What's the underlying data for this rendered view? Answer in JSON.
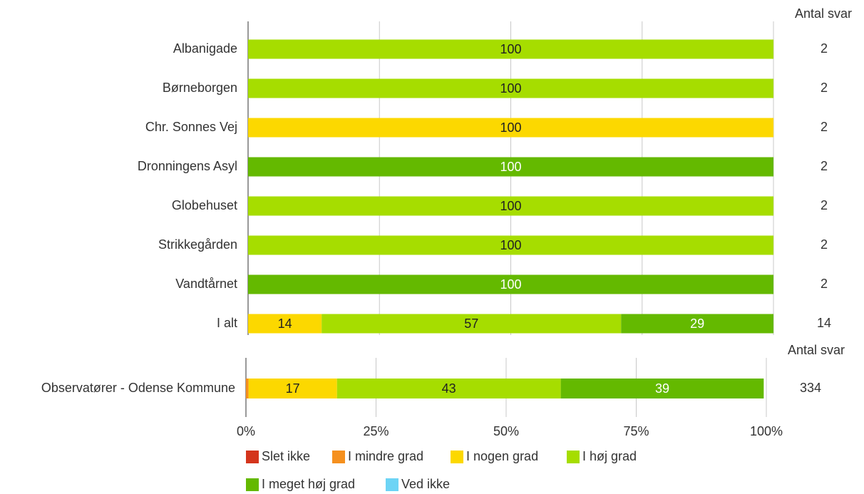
{
  "chart_data": [
    {
      "type": "stacked-bar",
      "categories": [
        "Albanigade",
        "Børneborgen",
        "Chr. Sonnes Vej",
        "Dronningens Asyl",
        "Globehuset",
        "Strikkegården",
        "Vandtårnet",
        "I alt"
      ],
      "series": [
        {
          "name": "Slet ikke",
          "color": "#d4351c",
          "values": [
            0,
            0,
            0,
            0,
            0,
            0,
            0,
            0
          ]
        },
        {
          "name": "I mindre grad",
          "color": "#f5901e",
          "values": [
            0,
            0,
            0,
            0,
            0,
            0,
            0,
            0
          ]
        },
        {
          "name": "I nogen grad",
          "color": "#fcd800",
          "values": [
            0,
            0,
            100,
            0,
            0,
            0,
            0,
            14
          ]
        },
        {
          "name": "I høj grad",
          "color": "#a6dd00",
          "values": [
            100,
            100,
            0,
            0,
            100,
            100,
            0,
            57
          ]
        },
        {
          "name": "I meget høj grad",
          "color": "#64b900",
          "values": [
            0,
            0,
            0,
            100,
            0,
            0,
            100,
            29
          ]
        },
        {
          "name": "Ved ikke",
          "color": "#6dd4f5",
          "values": [
            0,
            0,
            0,
            0,
            0,
            0,
            0,
            0
          ]
        }
      ],
      "n_label": "Antal svar",
      "n": [
        2,
        2,
        2,
        2,
        2,
        2,
        2,
        14
      ],
      "xlim": [
        0,
        100
      ],
      "xticks": [
        0,
        25,
        50,
        75,
        100
      ],
      "grid": true,
      "show_tick_labels": false
    },
    {
      "type": "stacked-bar",
      "categories": [
        "Observatører - Odense Kommune"
      ],
      "series": [
        {
          "name": "Slet ikke",
          "color": "#d4351c",
          "values": [
            0
          ]
        },
        {
          "name": "I mindre grad",
          "color": "#f5901e",
          "values": [
            0.5
          ]
        },
        {
          "name": "I nogen grad",
          "color": "#fcd800",
          "values": [
            17
          ]
        },
        {
          "name": "I høj grad",
          "color": "#a6dd00",
          "values": [
            43
          ]
        },
        {
          "name": "I meget høj grad",
          "color": "#64b900",
          "values": [
            39
          ]
        },
        {
          "name": "Ved ikke",
          "color": "#6dd4f5",
          "values": [
            0
          ]
        }
      ],
      "n_label": "Antal svar",
      "n": [
        334
      ],
      "xlim": [
        0,
        100
      ],
      "xticks": [
        {
          "value": 0,
          "label": "0%"
        },
        {
          "value": 25,
          "label": "25%"
        },
        {
          "value": 50,
          "label": "50%"
        },
        {
          "value": 75,
          "label": "75%"
        },
        {
          "value": 100,
          "label": "100%"
        }
      ],
      "grid": true,
      "show_tick_labels": true
    }
  ]
}
